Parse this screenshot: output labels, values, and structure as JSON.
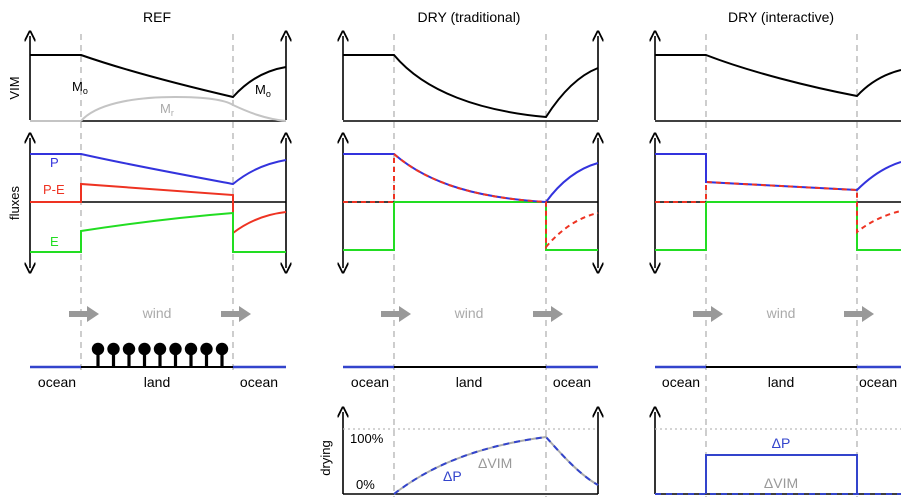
{
  "panels": [
    {
      "title": "REF"
    },
    {
      "title": "DRY (traditional)"
    },
    {
      "title": "DRY (interactive)"
    }
  ],
  "labels": {
    "vim": "VIM",
    "fluxes": "fluxes",
    "drying": "drying",
    "m_o": "M",
    "m_o_sub": "o",
    "m_r": "M",
    "m_r_sub": "r",
    "p": "P",
    "pe": "P-E",
    "e": "E",
    "wind": "wind",
    "ocean": "ocean",
    "land": "land",
    "delta_p": "ΔP",
    "delta_vim": "ΔVIM",
    "pct_100": "100%",
    "pct_0": "0%"
  },
  "colors": {
    "p": "#3333dd",
    "pe": "#ee3322",
    "e": "#22dd22",
    "grey": "#aaaaaa",
    "guide": "#c8c8c8",
    "ocean": "#3344cc",
    "axis": "#000000"
  }
}
